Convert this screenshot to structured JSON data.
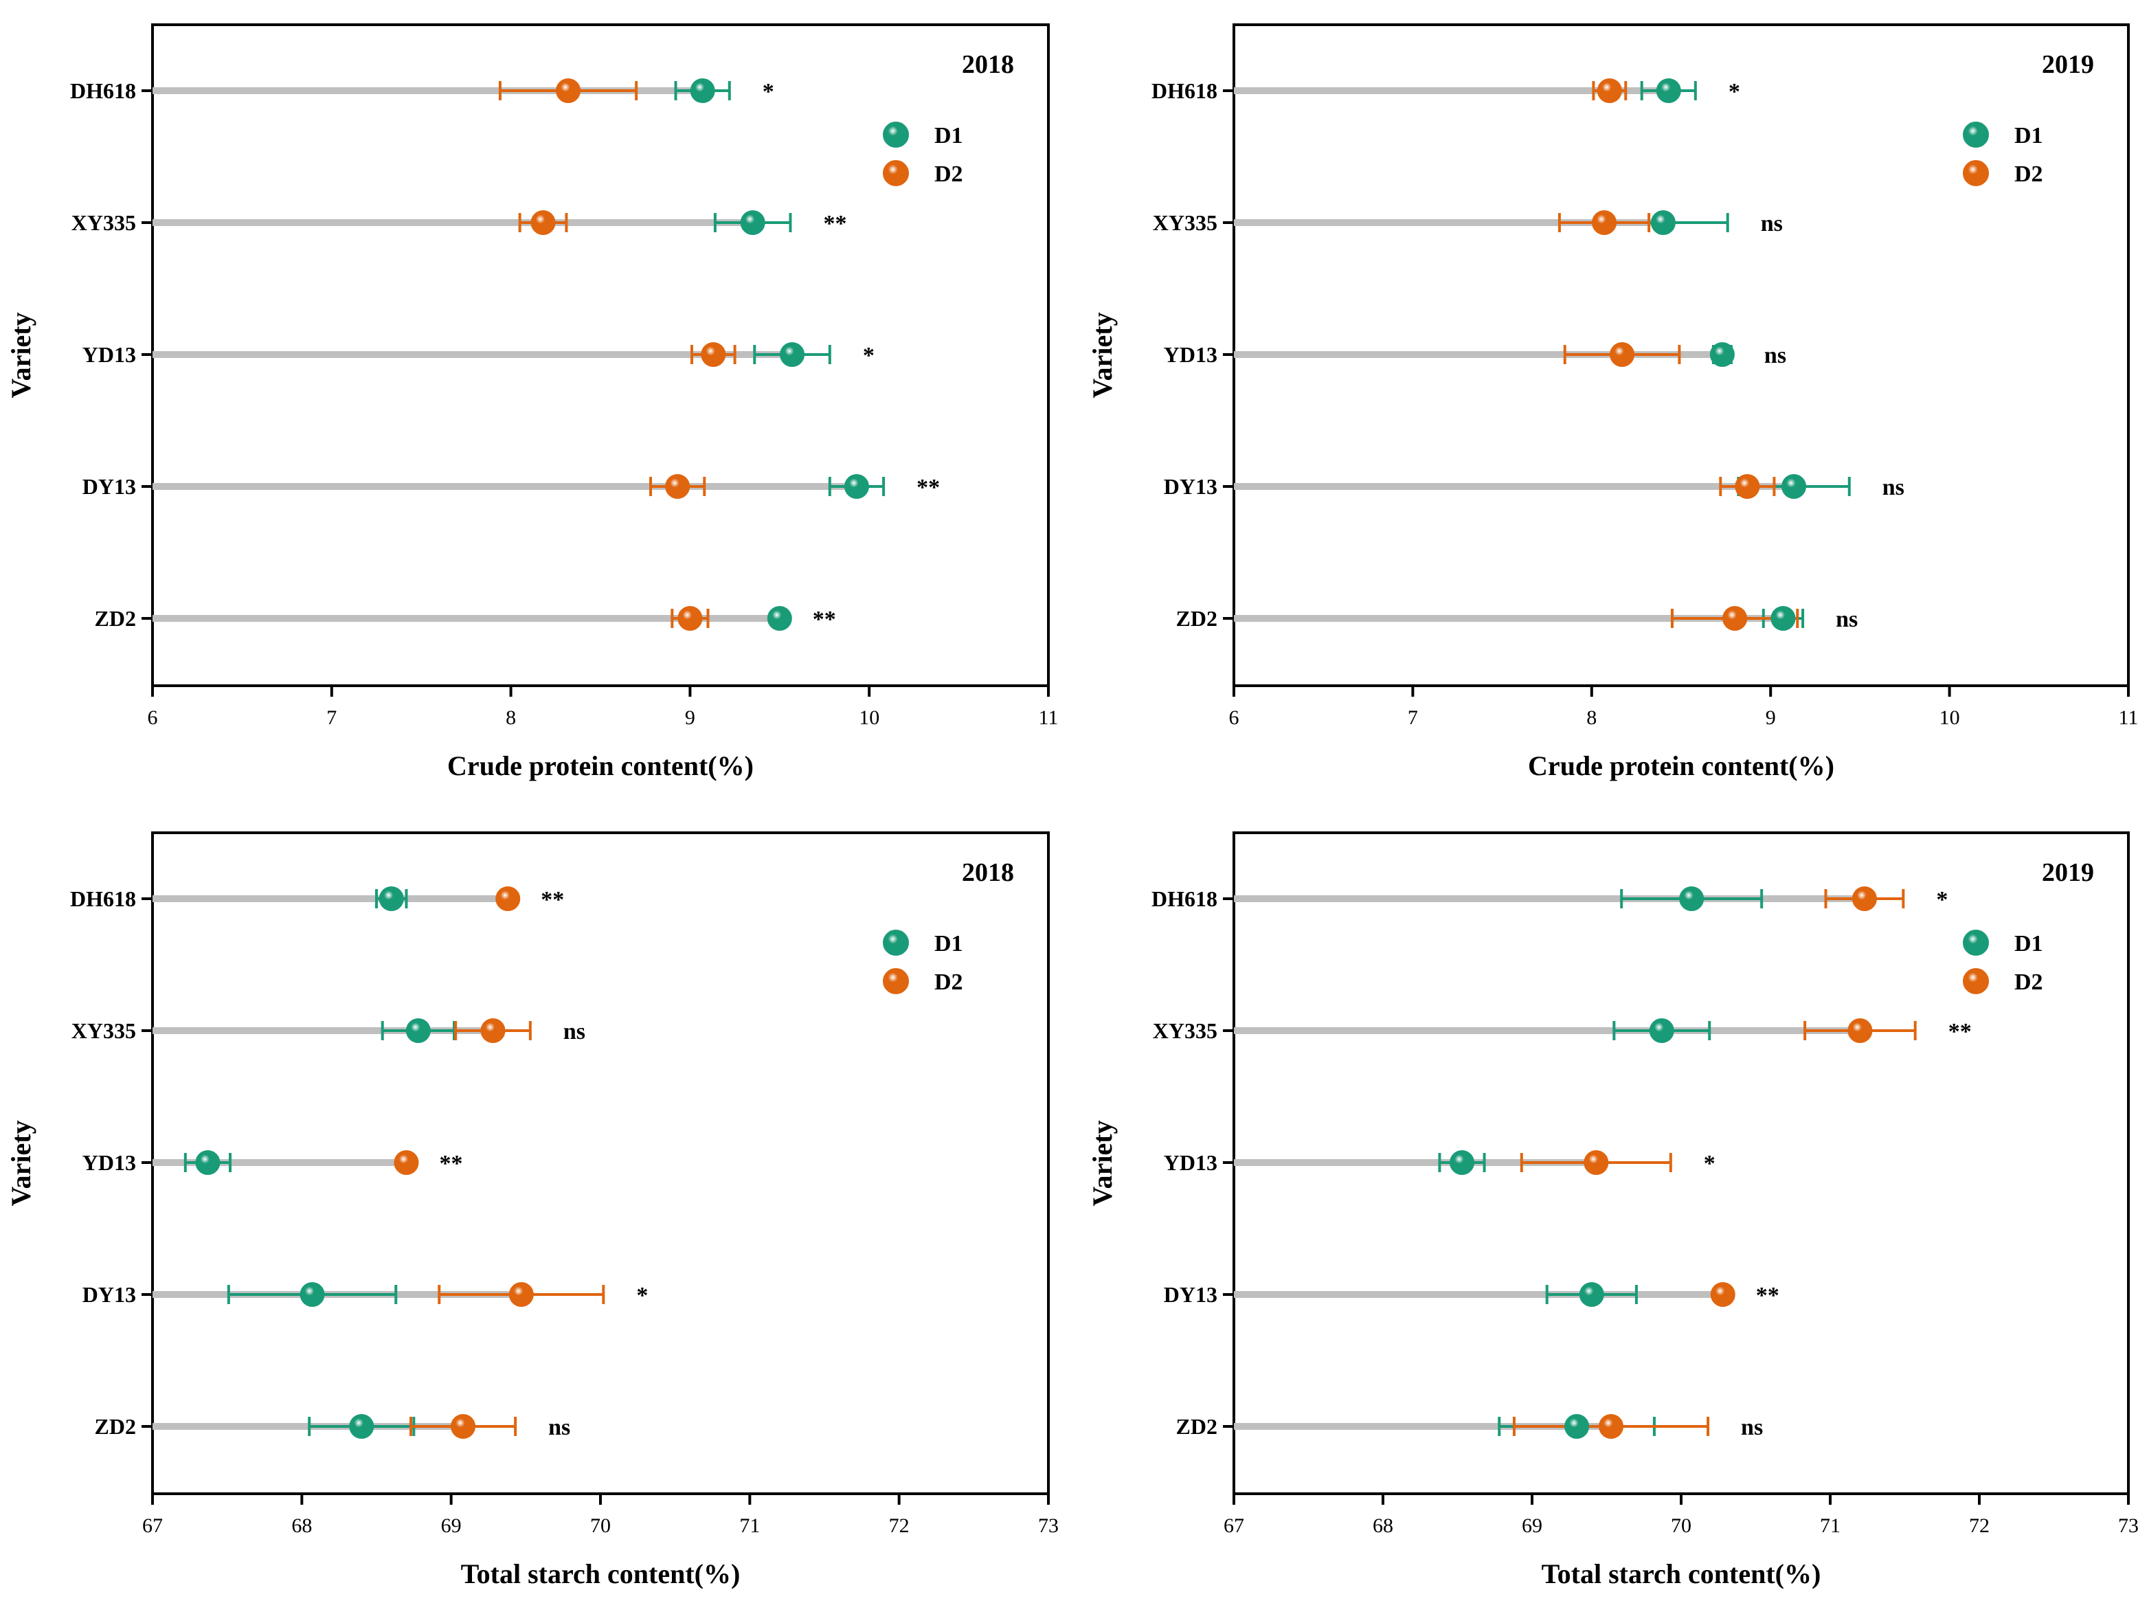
{
  "colors": {
    "D1": "#1a9b78",
    "D2": "#e0650f",
    "bar": "#bfbfbf"
  },
  "chart_data": [
    {
      "type": "scatter",
      "panel": "top-left",
      "year": "2018",
      "xlabel": "Crude protein content(%)",
      "ylabel": "Variety",
      "xlim": [
        6,
        11
      ],
      "xticks": [
        "6",
        "7",
        "8",
        "9",
        "10",
        "11"
      ],
      "categories": [
        "DH618",
        "XY335",
        "YD13",
        "DY13",
        "ZD2"
      ],
      "legend": [
        "D1",
        "D2"
      ],
      "legend_position": "top-right",
      "series": [
        {
          "name": "D1",
          "values": [
            9.07,
            9.35,
            9.57,
            9.93,
            9.5
          ],
          "errors": [
            0.15,
            0.21,
            0.21,
            0.15,
            0.0
          ]
        },
        {
          "name": "D2",
          "values": [
            8.32,
            8.18,
            9.13,
            8.93,
            9.0
          ],
          "errors": [
            0.38,
            0.13,
            0.12,
            0.15,
            0.1
          ]
        }
      ],
      "significance": [
        "*",
        "**",
        "*",
        "**",
        "**"
      ]
    },
    {
      "type": "scatter",
      "panel": "top-right",
      "year": "2019",
      "xlabel": "Crude protein content(%)",
      "ylabel": "Variety",
      "xlim": [
        6,
        11
      ],
      "xticks": [
        "6",
        "7",
        "8",
        "9",
        "10",
        "11"
      ],
      "categories": [
        "DH618",
        "XY335",
        "YD13",
        "DY13",
        "ZD2"
      ],
      "legend": [
        "D1",
        "D2"
      ],
      "legend_position": "top-right",
      "series": [
        {
          "name": "D1",
          "values": [
            8.43,
            8.4,
            8.73,
            9.13,
            9.07
          ],
          "errors": [
            0.15,
            0.36,
            0.05,
            0.31,
            0.11
          ]
        },
        {
          "name": "D2",
          "values": [
            8.1,
            8.07,
            8.17,
            8.87,
            8.8
          ],
          "errors": [
            0.09,
            0.25,
            0.32,
            0.15,
            0.35
          ]
        }
      ],
      "significance": [
        "*",
        "ns",
        "ns",
        "ns",
        "ns"
      ]
    },
    {
      "type": "scatter",
      "panel": "bottom-left",
      "year": "2018",
      "xlabel": "Total starch content(%)",
      "ylabel": "Variety",
      "xlim": [
        67,
        73
      ],
      "xticks": [
        "67",
        "68",
        "69",
        "70",
        "71",
        "72",
        "73"
      ],
      "categories": [
        "DH618",
        "XY335",
        "YD13",
        "DY13",
        "ZD2"
      ],
      "legend": [
        "D1",
        "D2"
      ],
      "legend_position": "top-right",
      "series": [
        {
          "name": "D1",
          "values": [
            68.6,
            68.78,
            67.37,
            68.07,
            68.4
          ],
          "errors": [
            0.1,
            0.24,
            0.15,
            0.56,
            0.35
          ]
        },
        {
          "name": "D2",
          "values": [
            69.38,
            69.28,
            68.7,
            69.47,
            69.08
          ],
          "errors": [
            0.0,
            0.25,
            0.0,
            0.55,
            0.35
          ]
        }
      ],
      "significance": [
        "**",
        "ns",
        "**",
        "*",
        "ns"
      ]
    },
    {
      "type": "scatter",
      "panel": "bottom-right",
      "year": "2019",
      "xlabel": "Total starch content(%)",
      "ylabel": "Variety",
      "xlim": [
        67,
        73
      ],
      "xticks": [
        "67",
        "68",
        "69",
        "70",
        "71",
        "72",
        "73"
      ],
      "categories": [
        "DH618",
        "XY335",
        "YD13",
        "DY13",
        "ZD2"
      ],
      "legend": [
        "D1",
        "D2"
      ],
      "legend_position": "top-right",
      "series": [
        {
          "name": "D1",
          "values": [
            70.07,
            69.87,
            68.53,
            69.4,
            69.3
          ],
          "errors": [
            0.47,
            0.32,
            0.15,
            0.3,
            0.52
          ]
        },
        {
          "name": "D2",
          "values": [
            71.23,
            71.2,
            69.43,
            70.28,
            69.53
          ],
          "errors": [
            0.26,
            0.37,
            0.5,
            0.0,
            0.65
          ]
        }
      ],
      "significance": [
        "*",
        "**",
        "*",
        "**",
        "ns"
      ]
    }
  ]
}
